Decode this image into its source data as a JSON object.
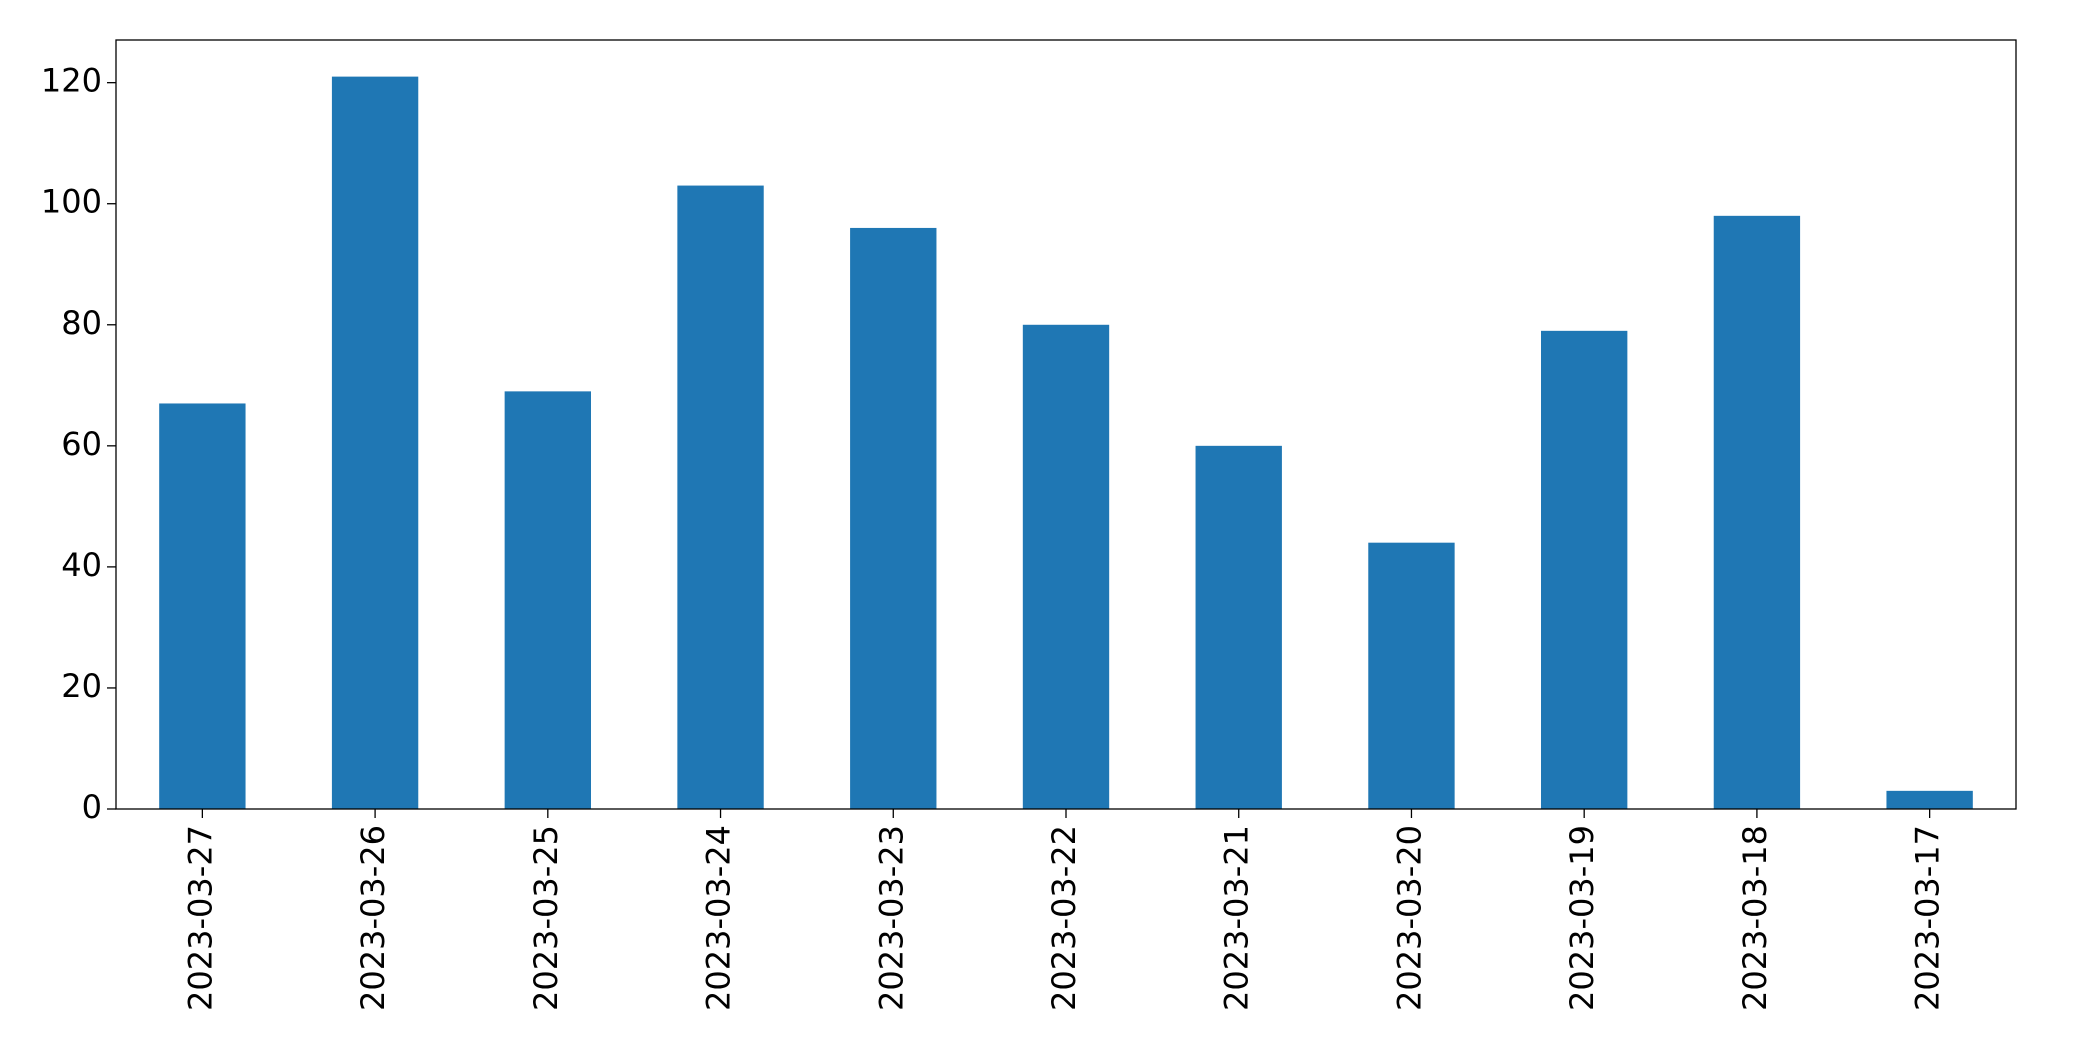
{
  "chart_data": {
    "type": "bar",
    "categories": [
      "2023-03-27",
      "2023-03-26",
      "2023-03-25",
      "2023-03-24",
      "2023-03-23",
      "2023-03-22",
      "2023-03-21",
      "2023-03-20",
      "2023-03-19",
      "2023-03-18",
      "2023-03-17"
    ],
    "values": [
      67,
      121,
      69,
      103,
      96,
      80,
      60,
      44,
      79,
      98,
      3
    ],
    "color": "#1f77b4",
    "ylim": [
      0,
      127.05
    ],
    "yticks": [
      0,
      20,
      40,
      60,
      80,
      100,
      120
    ],
    "grid": false
  }
}
